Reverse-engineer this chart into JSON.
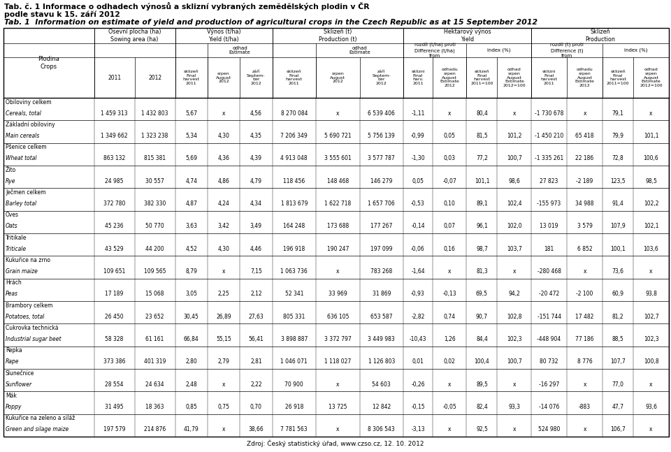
{
  "title1": "Tab. č. 1 Informace o odhadech výnosů a sklizní vybraných zemědělských plodin v ČR",
  "title2": "podle stavu k 15. září 2012",
  "title3": "Tab. 1  Information on estimate of yield and production of agricultural crops in the Czech Republic as at 15 September 2012",
  "footer": "Zdroj: Český statistický úřad, www.czso.cz, 12. 10. 2012",
  "rows": [
    {
      "name_cz": "Obiloviny celkem",
      "name_en": "Cereals, total",
      "vals": [
        "1 459 313",
        "1 432 803",
        "5,67",
        "x",
        "4,56",
        "8 270 084",
        "x",
        "6 539 406",
        "-1,11",
        "x",
        "80,4",
        "x",
        "-1 730 678",
        "x",
        "79,1",
        "x"
      ]
    },
    {
      "name_cz": "Základní obiloviny",
      "name_en": "Main cereals",
      "vals": [
        "1 349 662",
        "1 323 238",
        "5,34",
        "4,30",
        "4,35",
        "7 206 349",
        "5 690 721",
        "5 756 139",
        "-0,99",
        "0,05",
        "81,5",
        "101,2",
        "-1 450 210",
        "65 418",
        "79,9",
        "101,1"
      ]
    },
    {
      "name_cz": "Pšenice celkem",
      "name_en": "Wheat total",
      "vals": [
        "863 132",
        "815 381",
        "5,69",
        "4,36",
        "4,39",
        "4 913 048",
        "3 555 601",
        "3 577 787",
        "-1,30",
        "0,03",
        "77,2",
        "100,7",
        "-1 335 261",
        "22 186",
        "72,8",
        "100,6"
      ]
    },
    {
      "name_cz": "Žito",
      "name_en": "Rye",
      "vals": [
        "24 985",
        "30 557",
        "4,74",
        "4,86",
        "4,79",
        "118 456",
        "148 468",
        "146 279",
        "0,05",
        "-0,07",
        "101,1",
        "98,6",
        "27 823",
        "-2 189",
        "123,5",
        "98,5"
      ]
    },
    {
      "name_cz": "Ječmen celkem",
      "name_en": "Barley total",
      "vals": [
        "372 780",
        "382 330",
        "4,87",
        "4,24",
        "4,34",
        "1 813 679",
        "1 622 718",
        "1 657 706",
        "-0,53",
        "0,10",
        "89,1",
        "102,4",
        "-155 973",
        "34 988",
        "91,4",
        "102,2"
      ]
    },
    {
      "name_cz": "Oves",
      "name_en": "Oats",
      "vals": [
        "45 236",
        "50 770",
        "3,63",
        "3,42",
        "3,49",
        "164 248",
        "173 688",
        "177 267",
        "-0,14",
        "0,07",
        "96,1",
        "102,0",
        "13 019",
        "3 579",
        "107,9",
        "102,1"
      ]
    },
    {
      "name_cz": "Tritikale",
      "name_en": "Triticale",
      "vals": [
        "43 529",
        "44 200",
        "4,52",
        "4,30",
        "4,46",
        "196 918",
        "190 247",
        "197 099",
        "-0,06",
        "0,16",
        "98,7",
        "103,7",
        "181",
        "6 852",
        "100,1",
        "103,6"
      ]
    },
    {
      "name_cz": "Kukuřice na zrno",
      "name_en": "Grain maize",
      "vals": [
        "109 651",
        "109 565",
        "8,79",
        "x",
        "7,15",
        "1 063 736",
        "x",
        "783 268",
        "-1,64",
        "x",
        "81,3",
        "x",
        "-280 468",
        "x",
        "73,6",
        "x"
      ]
    },
    {
      "name_cz": "Hrách",
      "name_en": "Peas",
      "vals": [
        "17 189",
        "15 068",
        "3,05",
        "2,25",
        "2,12",
        "52 341",
        "33 969",
        "31 869",
        "-0,93",
        "-0,13",
        "69,5",
        "94,2",
        "-20 472",
        "-2 100",
        "60,9",
        "93,8"
      ]
    },
    {
      "name_cz": "Brambory celkem",
      "name_en": "Potatoes, total",
      "vals": [
        "26 450",
        "23 652",
        "30,45",
        "26,89",
        "27,63",
        "805 331",
        "636 105",
        "653 587",
        "-2,82",
        "0,74",
        "90,7",
        "102,8",
        "-151 744",
        "17 482",
        "81,2",
        "102,7"
      ]
    },
    {
      "name_cz": "Cukrovka technická",
      "name_en": "Industrial sugar beet",
      "vals": [
        "58 328",
        "61 161",
        "66,84",
        "55,15",
        "56,41",
        "3 898 887",
        "3 372 797",
        "3 449 983",
        "-10,43",
        "1,26",
        "84,4",
        "102,3",
        "-448 904",
        "77 186",
        "88,5",
        "102,3"
      ]
    },
    {
      "name_cz": "Repka",
      "name_en": "Rape",
      "vals": [
        "373 386",
        "401 319",
        "2,80",
        "2,79",
        "2,81",
        "1 046 071",
        "1 118 027",
        "1 126 803",
        "0,01",
        "0,02",
        "100,4",
        "100,7",
        "80 732",
        "8 776",
        "107,7",
        "100,8"
      ]
    },
    {
      "name_cz": "Slunečnice",
      "name_en": "Sunflower",
      "vals": [
        "28 554",
        "24 634",
        "2,48",
        "x",
        "2,22",
        "70 900",
        "x",
        "54 603",
        "-0,26",
        "x",
        "89,5",
        "x",
        "-16 297",
        "x",
        "77,0",
        "x"
      ]
    },
    {
      "name_cz": "Mák",
      "name_en": "Poppy",
      "vals": [
        "31 495",
        "18 363",
        "0,85",
        "0,75",
        "0,70",
        "26 918",
        "13 725",
        "12 842",
        "-0,15",
        "-0,05",
        "82,4",
        "93,3",
        "-14 076",
        "-883",
        "47,7",
        "93,6"
      ]
    },
    {
      "name_cz": "Kukuřice na zeleno a siláž",
      "name_en": "Green and silage maize",
      "vals": [
        "197 579",
        "214 876",
        "41,79",
        "x",
        "38,66",
        "7 781 563",
        "x",
        "8 306 543",
        "-3,13",
        "x",
        "92,5",
        "x",
        "524 980",
        "x",
        "106,7",
        "x"
      ]
    }
  ],
  "col_header_row3": [
    "sklizeň\nFinal\nharvest\n2011",
    "srpen\nAugust\n2012",
    "září\nSeptem-\nber\n2012",
    "sklizeň\nFinal\nharvest\n2011",
    "srpen\nAugust\n2012",
    "září\nSeptem-\nber\n2012",
    "sklizni\nFinal\nharv.\n2011",
    "odhadu\nsrpen\nAugust\nEstimate\n2012",
    "sklizeň\nFinal\nharvest\n2011=100",
    "odhad\nsrpen\nAugust\nEstimate\n2012=100",
    "sklizni\nFinal\nharvest\n2011",
    "odhadu\nsrpen\nAugust\nEstimate\n2012",
    "sklizeň\nFinal\nharvest\n2011=100",
    "odhad\nsrpen\nAugust\nEstimate\n2012=100"
  ]
}
